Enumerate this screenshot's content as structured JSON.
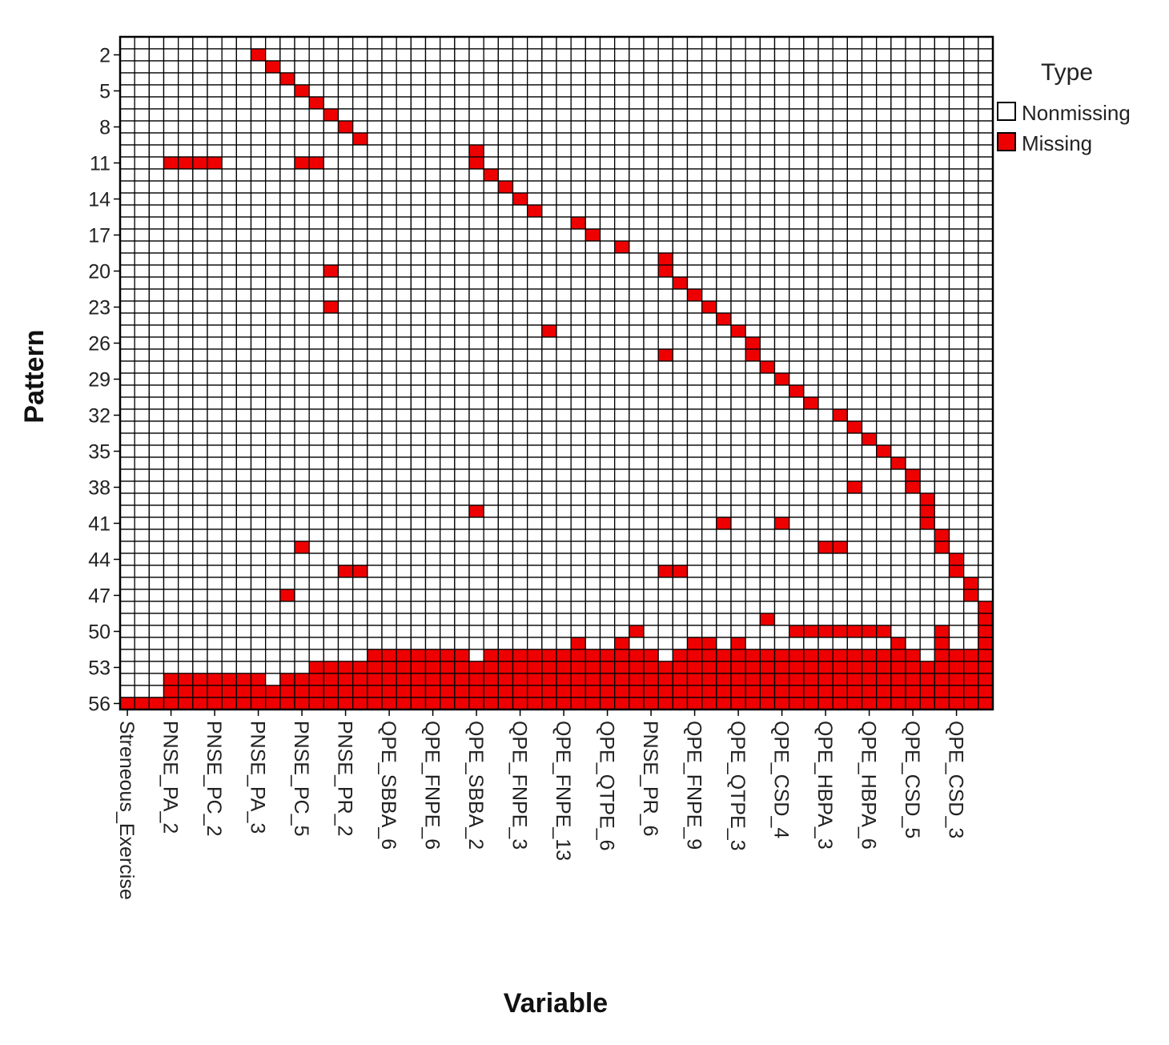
{
  "chart_data": {
    "type": "heatmap",
    "title": "",
    "xlabel": "Variable",
    "ylabel": "Pattern",
    "rows": 56,
    "cols": 60,
    "y_tick_labels": [
      "2",
      "5",
      "8",
      "11",
      "14",
      "17",
      "20",
      "23",
      "26",
      "29",
      "32",
      "35",
      "38",
      "41",
      "44",
      "47",
      "50",
      "53",
      "56"
    ],
    "x_tick_labels": [
      "Streneous_Exercise",
      "PNSE_PA_2",
      "PNSE_PC_2",
      "PNSE_PA_3",
      "PNSE_PC_5",
      "PNSE_PR_2",
      "QPE_SBBA_6",
      "QPE_FNPE_6",
      "QPE_SBBA_2",
      "QPE_FNPE_3",
      "QPE_FNPE_13",
      "QPE_QTPE_6",
      "PNSE_PR_6",
      "QPE_FNPE_9",
      "QPE_QTPE_3",
      "QPE_CSD_4",
      "QPE_HBPA_3",
      "QPE_HBPA_6",
      "QPE_CSD_5",
      "QPE_CSD_3"
    ],
    "legend": {
      "title": "Type",
      "position": "right",
      "items": [
        {
          "label": "Nonmissing",
          "color": "#ffffff"
        },
        {
          "label": "Missing",
          "color": "#ee0000"
        }
      ]
    },
    "missing_cells": [
      [
        2,
        9
      ],
      [
        3,
        10
      ],
      [
        4,
        11
      ],
      [
        5,
        12
      ],
      [
        6,
        13
      ],
      [
        7,
        14
      ],
      [
        8,
        15
      ],
      [
        9,
        16
      ],
      [
        10,
        24
      ],
      [
        11,
        3
      ],
      [
        11,
        4
      ],
      [
        11,
        5
      ],
      [
        11,
        6
      ],
      [
        11,
        12
      ],
      [
        11,
        13
      ],
      [
        11,
        24
      ],
      [
        12,
        25
      ],
      [
        13,
        26
      ],
      [
        14,
        27
      ],
      [
        15,
        28
      ],
      [
        16,
        31
      ],
      [
        17,
        32
      ],
      [
        18,
        34
      ],
      [
        19,
        37
      ],
      [
        20,
        14
      ],
      [
        20,
        37
      ],
      [
        21,
        38
      ],
      [
        22,
        39
      ],
      [
        23,
        14
      ],
      [
        23,
        40
      ],
      [
        24,
        41
      ],
      [
        25,
        29
      ],
      [
        25,
        42
      ],
      [
        26,
        43
      ],
      [
        27,
        37
      ],
      [
        27,
        43
      ],
      [
        28,
        44
      ],
      [
        29,
        45
      ],
      [
        30,
        46
      ],
      [
        31,
        47
      ],
      [
        32,
        49
      ],
      [
        33,
        50
      ],
      [
        34,
        51
      ],
      [
        35,
        52
      ],
      [
        36,
        53
      ],
      [
        37,
        54
      ],
      [
        38,
        50
      ],
      [
        38,
        54
      ],
      [
        39,
        55
      ],
      [
        40,
        24
      ],
      [
        40,
        55
      ],
      [
        41,
        41
      ],
      [
        41,
        45
      ],
      [
        41,
        55
      ],
      [
        42,
        56
      ],
      [
        43,
        12
      ],
      [
        43,
        48
      ],
      [
        43,
        49
      ],
      [
        43,
        56
      ],
      [
        44,
        57
      ],
      [
        45,
        15
      ],
      [
        45,
        16
      ],
      [
        45,
        37
      ],
      [
        45,
        38
      ],
      [
        45,
        57
      ],
      [
        46,
        58
      ],
      [
        47,
        11
      ],
      [
        47,
        58
      ],
      [
        48,
        59
      ],
      [
        49,
        44
      ],
      [
        49,
        59
      ],
      [
        50,
        35
      ],
      [
        50,
        46
      ],
      [
        50,
        47
      ],
      [
        50,
        48
      ],
      [
        50,
        49
      ],
      [
        50,
        50
      ],
      [
        50,
        51
      ],
      [
        50,
        52
      ],
      [
        50,
        56
      ],
      [
        50,
        59
      ],
      [
        51,
        31
      ],
      [
        51,
        34
      ],
      [
        51,
        39
      ],
      [
        51,
        40
      ],
      [
        51,
        42
      ],
      [
        51,
        53
      ],
      [
        51,
        56
      ],
      [
        51,
        59
      ]
    ],
    "bulk_rows": [
      {
        "row": 52,
        "from_col": 17,
        "exclude": [
          24,
          37,
          55
        ]
      },
      {
        "row": 53,
        "from_col": 13,
        "exclude": []
      },
      {
        "row": 54,
        "from_col": 3,
        "exclude": [
          10
        ]
      },
      {
        "row": 55,
        "from_col": 3,
        "exclude": []
      },
      {
        "row": 56,
        "from_col": 0,
        "exclude": []
      }
    ]
  }
}
